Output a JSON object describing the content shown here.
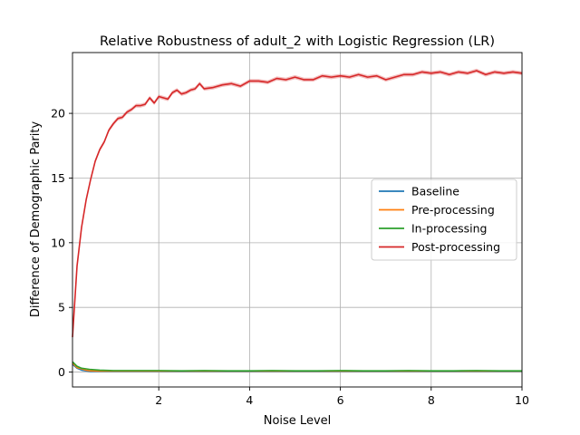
{
  "chart_data": {
    "type": "line",
    "title": "Relative Robustness of adult_2 with Logistic Regression (LR)",
    "xlabel": "Noise Level",
    "ylabel": "Difference of Demographic Parity",
    "xlim": [
      0.1,
      10
    ],
    "ylim": [
      -1.15,
      24.7
    ],
    "xticks": [
      2,
      4,
      6,
      8,
      10
    ],
    "yticks": [
      0,
      5,
      10,
      15,
      20
    ],
    "grid": true,
    "legend_position": "center-right",
    "series": [
      {
        "name": "Baseline",
        "color": "#1f77b4",
        "x": [
          0.1,
          0.2,
          0.3,
          0.4,
          0.5,
          0.7,
          1,
          1.5,
          2,
          3,
          4,
          5,
          6,
          7,
          8,
          9,
          10
        ],
        "values": [
          0.6,
          0.3,
          0.15,
          0.1,
          0.05,
          0.05,
          0.05,
          0.05,
          0.05,
          0.05,
          0.05,
          0.05,
          0.05,
          0.05,
          0.05,
          0.05,
          0.05
        ]
      },
      {
        "name": "Pre-processing",
        "color": "#ff7f0e",
        "x": [
          0.1,
          0.2,
          0.3,
          0.4,
          0.5,
          0.7,
          1,
          1.5,
          2,
          3,
          4,
          5,
          6,
          7,
          8,
          9,
          10
        ],
        "values": [
          0.7,
          0.35,
          0.25,
          0.15,
          0.1,
          0.08,
          0.08,
          0.08,
          0.08,
          0.08,
          0.08,
          0.08,
          0.08,
          0.08,
          0.08,
          0.08,
          0.08
        ]
      },
      {
        "name": "In-processing",
        "color": "#2ca02c",
        "x": [
          0.1,
          0.2,
          0.3,
          0.4,
          0.5,
          0.7,
          1,
          1.5,
          2,
          2.5,
          3,
          3.5,
          4,
          4.5,
          5,
          5.5,
          6,
          6.5,
          7,
          7.5,
          8,
          8.5,
          9,
          9.5,
          10
        ],
        "values": [
          0.8,
          0.45,
          0.3,
          0.25,
          0.2,
          0.15,
          0.12,
          0.12,
          0.12,
          0.1,
          0.12,
          0.1,
          0.1,
          0.12,
          0.1,
          0.1,
          0.12,
          0.1,
          0.1,
          0.12,
          0.1,
          0.1,
          0.12,
          0.1,
          0.1
        ]
      },
      {
        "name": "Post-processing",
        "color": "#d62728",
        "x": [
          0.1,
          0.2,
          0.3,
          0.4,
          0.5,
          0.6,
          0.7,
          0.8,
          0.9,
          1.0,
          1.1,
          1.2,
          1.3,
          1.4,
          1.5,
          1.6,
          1.7,
          1.8,
          1.9,
          2.0,
          2.2,
          2.3,
          2.4,
          2.5,
          2.6,
          2.7,
          2.8,
          2.9,
          3.0,
          3.2,
          3.4,
          3.6,
          3.8,
          4.0,
          4.2,
          4.4,
          4.6,
          4.8,
          5.0,
          5.2,
          5.4,
          5.6,
          5.8,
          6.0,
          6.2,
          6.4,
          6.6,
          6.8,
          7.0,
          7.2,
          7.4,
          7.6,
          7.8,
          8.0,
          8.2,
          8.4,
          8.6,
          8.8,
          9.0,
          9.2,
          9.4,
          9.6,
          9.8,
          10.0
        ],
        "values": [
          2.7,
          8.2,
          11.2,
          13.3,
          14.9,
          16.3,
          17.2,
          17.8,
          18.7,
          19.2,
          19.6,
          19.7,
          20.1,
          20.3,
          20.6,
          20.6,
          20.7,
          21.2,
          20.8,
          21.3,
          21.1,
          21.6,
          21.8,
          21.5,
          21.6,
          21.8,
          21.9,
          22.3,
          21.9,
          22.0,
          22.2,
          22.3,
          22.1,
          22.5,
          22.5,
          22.4,
          22.7,
          22.6,
          22.8,
          22.6,
          22.6,
          22.9,
          22.8,
          22.9,
          22.8,
          23.0,
          22.8,
          22.9,
          22.6,
          22.8,
          23.0,
          23.0,
          23.2,
          23.1,
          23.2,
          23.0,
          23.2,
          23.1,
          23.3,
          23.0,
          23.2,
          23.1,
          23.2,
          23.1
        ]
      }
    ]
  }
}
